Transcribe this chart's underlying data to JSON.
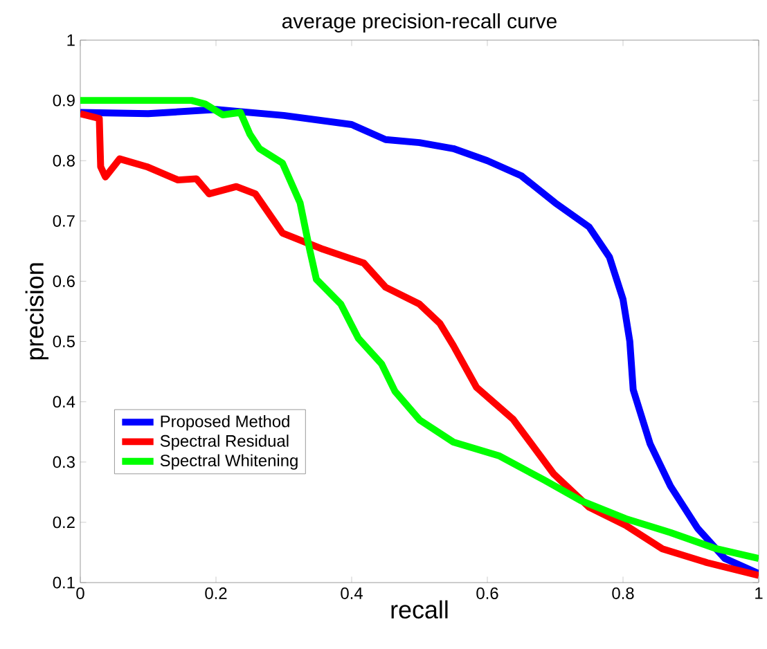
{
  "chart_data": {
    "type": "line",
    "title": "average precision-recall curve",
    "xlabel": "recall",
    "ylabel": "precision",
    "xlim": [
      0,
      1
    ],
    "ylim": [
      0.1,
      1
    ],
    "xticks": [
      0,
      0.2,
      0.4,
      0.6,
      0.8,
      1
    ],
    "yticks": [
      0.1,
      0.2,
      0.3,
      0.4,
      0.5,
      0.6,
      0.7,
      0.8,
      0.9,
      1
    ],
    "grid": false,
    "legend": "bottom left",
    "marker": "none",
    "line_style": "solid",
    "series": [
      {
        "name": "Proposed Method",
        "color": "#0000ff",
        "x": [
          0,
          0.1,
          0.2,
          0.3,
          0.4,
          0.45,
          0.5,
          0.55,
          0.6,
          0.65,
          0.7,
          0.75,
          0.78,
          0.8,
          0.81,
          0.815,
          0.84,
          0.87,
          0.91,
          0.95,
          1.0
        ],
        "values": [
          0.88,
          0.878,
          0.885,
          0.875,
          0.86,
          0.835,
          0.83,
          0.82,
          0.8,
          0.775,
          0.73,
          0.69,
          0.64,
          0.57,
          0.5,
          0.42,
          0.33,
          0.26,
          0.19,
          0.14,
          0.115
        ]
      },
      {
        "name": "Spectral Residual",
        "color": "#ff0000",
        "x": [
          0,
          0.028,
          0.03,
          0.037,
          0.058,
          0.098,
          0.144,
          0.171,
          0.19,
          0.23,
          0.258,
          0.298,
          0.358,
          0.418,
          0.45,
          0.5,
          0.53,
          0.55,
          0.584,
          0.638,
          0.698,
          0.75,
          0.804,
          0.858,
          0.924,
          1.0
        ],
        "values": [
          0.878,
          0.87,
          0.79,
          0.773,
          0.803,
          0.79,
          0.768,
          0.77,
          0.745,
          0.757,
          0.745,
          0.68,
          0.653,
          0.63,
          0.59,
          0.562,
          0.53,
          0.493,
          0.424,
          0.371,
          0.28,
          0.225,
          0.195,
          0.156,
          0.133,
          0.112
        ]
      },
      {
        "name": "Spectral Whitening",
        "color": "#00ff00",
        "x": [
          0,
          0.1,
          0.164,
          0.184,
          0.21,
          0.236,
          0.25,
          0.264,
          0.298,
          0.324,
          0.338,
          0.348,
          0.384,
          0.41,
          0.444,
          0.464,
          0.5,
          0.55,
          0.618,
          0.684,
          0.738,
          0.804,
          0.87,
          0.938,
          1.0
        ],
        "values": [
          0.9,
          0.9,
          0.9,
          0.894,
          0.876,
          0.88,
          0.844,
          0.82,
          0.796,
          0.73,
          0.653,
          0.603,
          0.562,
          0.505,
          0.463,
          0.417,
          0.37,
          0.333,
          0.31,
          0.27,
          0.236,
          0.206,
          0.183,
          0.156,
          0.14
        ]
      }
    ]
  }
}
